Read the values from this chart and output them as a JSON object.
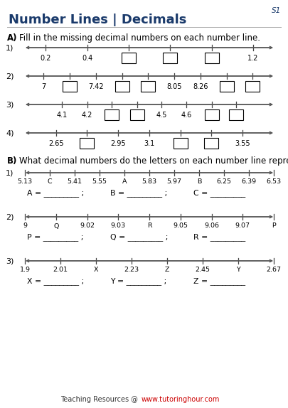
{
  "title": "Number Lines | Decimals",
  "s1_label": "S1",
  "section_a_label": "A)",
  "section_a_text": "Fill in the missing decimal numbers on each number line.",
  "section_b_label": "B)",
  "section_b_text": "What decimal numbers do the letters on each number line represent?",
  "footer_plain": "Teaching Resources @ ",
  "footer_link": "www.tutoringhour.com",
  "title_color": "#1a3a6b",
  "line_color": "#555555",
  "text_color": "#000000",
  "box_color": "#000000",
  "footer_plain_color": "#333333",
  "footer_link_color": "#cc0000",
  "numberlines_a": [
    {
      "num": "1)",
      "labels": [
        "0.2",
        "0.4",
        null,
        null,
        null,
        "1.2"
      ],
      "xmin": 0.1,
      "xmax": 1.3,
      "tick_vals": [
        0.2,
        0.4,
        0.6,
        0.8,
        1.0,
        1.2
      ]
    },
    {
      "num": "2)",
      "labels": [
        "7",
        null,
        "7.42",
        null,
        null,
        "8.05",
        "8.26",
        null,
        null
      ],
      "xmin": 6.85,
      "xmax": 8.85,
      "tick_vals": [
        7.0,
        7.21,
        7.42,
        7.63,
        7.84,
        8.05,
        8.26,
        8.47,
        8.68
      ]
    },
    {
      "num": "3)",
      "labels": [
        "4.1",
        "4.2",
        null,
        null,
        "4.5",
        "4.6",
        null,
        null
      ],
      "xmin": 3.95,
      "xmax": 4.95,
      "tick_vals": [
        4.1,
        4.2,
        4.3,
        4.4,
        4.5,
        4.6,
        4.7,
        4.8
      ]
    },
    {
      "num": "4)",
      "labels": [
        "2.65",
        null,
        "2.95",
        "3.1",
        null,
        null,
        "3.55"
      ],
      "xmin": 2.5,
      "xmax": 3.7,
      "tick_vals": [
        2.65,
        2.8,
        2.95,
        3.1,
        3.25,
        3.4,
        3.55
      ]
    }
  ],
  "numberlines_b": [
    {
      "num": "1)",
      "labels": [
        "5.13",
        "C",
        "5.41",
        "5.55",
        "A",
        "5.83",
        "5.97",
        "B",
        "6.25",
        "6.39",
        "6.53"
      ],
      "answers": [
        "A = _________ ;",
        "B = _________ ;",
        "C = _________"
      ]
    },
    {
      "num": "2)",
      "labels": [
        "9",
        "Q",
        "9.02",
        "9.03",
        "R",
        "9.05",
        "9.06",
        "9.07",
        "P"
      ],
      "answers": [
        "P = _________ ;",
        "Q = _________ ;",
        "R = _________"
      ]
    },
    {
      "num": "3)",
      "labels": [
        "1.9",
        "2.01",
        "X",
        "2.23",
        "Z",
        "2.45",
        "Y",
        "2.67"
      ],
      "answers": [
        "X = _________ ;",
        "Y = _________ ;",
        "Z = _________"
      ]
    }
  ]
}
